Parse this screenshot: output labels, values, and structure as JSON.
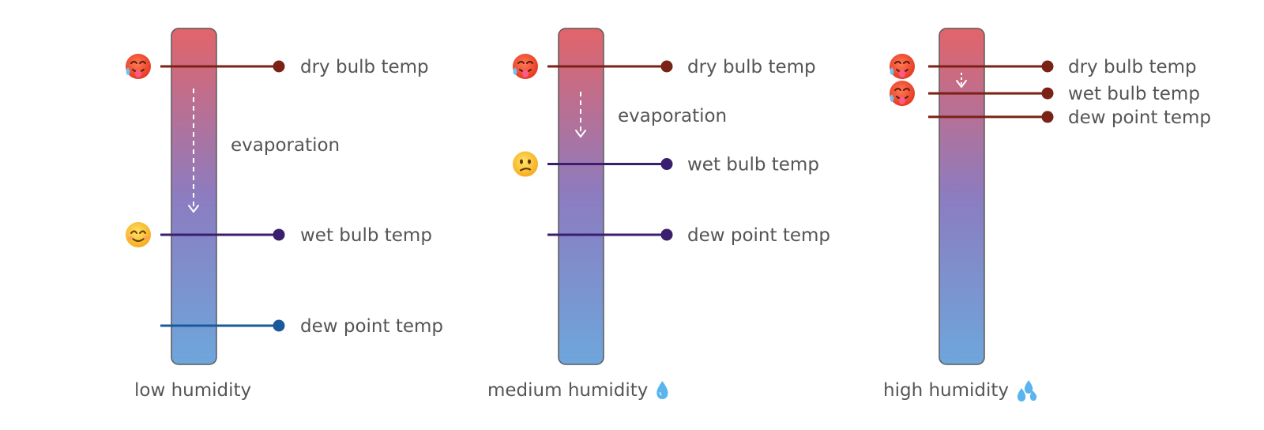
{
  "colors": {
    "bar_top": "#e2646a",
    "bar_mid": "#8c7cc0",
    "bar_bottom": "#6ea6dc",
    "bar_border": "#5a5a5a",
    "dry_line": "#7b2216",
    "wet_line": "#3a1f6e",
    "dew_line_low": "#1a5a98",
    "dew_line_other": "#3a1f6e",
    "arrow": "#ffffff",
    "text": "#555555"
  },
  "emoji_icons": {
    "hot": "hot-face-icon",
    "smile": "smiling-face-icon",
    "confused": "confused-face-icon",
    "droplet": "droplet-icon",
    "sweat": "sweat-droplets-icon"
  },
  "panels": [
    {
      "caption": "low humidity",
      "caption_icon": "",
      "arrow_label": "evaporation",
      "readings": [
        {
          "label": "dry bulb temp",
          "kind": "dry",
          "level": 1.0,
          "emoji": "hot-face-icon"
        },
        {
          "label": "wet bulb temp",
          "kind": "wet",
          "level": 0.5,
          "emoji": "smiling-face-icon"
        },
        {
          "label": "dew point temp",
          "kind": "dew",
          "level": 0.23,
          "emoji": ""
        }
      ]
    },
    {
      "caption": "medium humidity",
      "caption_icon": "droplet-icon",
      "arrow_label": "evaporation",
      "readings": [
        {
          "label": "dry bulb temp",
          "kind": "dry",
          "level": 1.0,
          "emoji": "hot-face-icon"
        },
        {
          "label": "wet bulb temp",
          "kind": "wet",
          "level": 0.71,
          "emoji": "confused-face-icon"
        },
        {
          "label": "dew point temp",
          "kind": "dew",
          "level": 0.5,
          "emoji": ""
        }
      ]
    },
    {
      "caption": "high humidity",
      "caption_icon": "sweat-droplets-icon",
      "arrow_label": "",
      "readings": [
        {
          "label": "dry bulb temp",
          "kind": "dry",
          "level": 1.0,
          "emoji": "hot-face-icon"
        },
        {
          "label": "wet bulb temp",
          "kind": "wet",
          "level": 0.92,
          "emoji": "hot-face-icon"
        },
        {
          "label": "dew point temp",
          "kind": "dew",
          "level": 0.85,
          "emoji": ""
        }
      ]
    }
  ]
}
